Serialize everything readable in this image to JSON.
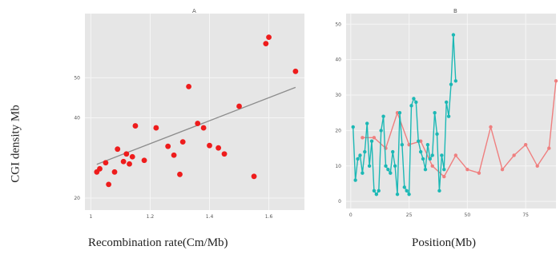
{
  "figure": {
    "y_axis_label": "CGI density Mb",
    "panel_a_xlabel": "Recombination rate(Cm/Mb)",
    "panel_b_xlabel": "Position(Mb)"
  },
  "chart_data": [
    {
      "type": "scatter",
      "title": "A",
      "xlabel": "Recombination rate(Cm/Mb)",
      "ylabel": "CGI density Mb",
      "xlim": [
        0.98,
        1.72
      ],
      "ylim": [
        17,
        66
      ],
      "xticks": [
        1.0,
        1.2,
        1.4,
        1.6
      ],
      "yticks": [
        20,
        40,
        50
      ],
      "yticklabels": [
        "20",
        "40",
        "50"
      ],
      "grid": true,
      "point_color": "#ee1c1c",
      "trend_color": "#8c8c8c",
      "points": [
        [
          1.02,
          26.5
        ],
        [
          1.03,
          27.3
        ],
        [
          1.05,
          28.8
        ],
        [
          1.06,
          23.4
        ],
        [
          1.08,
          26.5
        ],
        [
          1.09,
          32.2
        ],
        [
          1.11,
          29.1
        ],
        [
          1.12,
          31.0
        ],
        [
          1.13,
          28.5
        ],
        [
          1.14,
          30.3
        ],
        [
          1.15,
          38.0
        ],
        [
          1.18,
          29.4
        ],
        [
          1.22,
          37.5
        ],
        [
          1.26,
          32.9
        ],
        [
          1.28,
          30.7
        ],
        [
          1.3,
          25.9
        ],
        [
          1.31,
          34.0
        ],
        [
          1.33,
          47.8
        ],
        [
          1.36,
          38.6
        ],
        [
          1.38,
          37.5
        ],
        [
          1.4,
          33.1
        ],
        [
          1.43,
          32.5
        ],
        [
          1.45,
          31.0
        ],
        [
          1.5,
          42.9
        ],
        [
          1.55,
          25.4
        ],
        [
          1.59,
          58.5
        ],
        [
          1.6,
          60.1
        ],
        [
          1.69,
          51.6
        ]
      ],
      "trend": [
        [
          1.02,
          28.4
        ],
        [
          1.69,
          47.6
        ]
      ]
    },
    {
      "type": "line",
      "title": "B",
      "xlabel": "Position(Mb)",
      "xlim": [
        -2,
        88
      ],
      "ylim": [
        -2,
        53
      ],
      "xticks": [
        0,
        25,
        50,
        75
      ],
      "yticks": [
        0,
        10,
        20,
        30,
        40,
        50
      ],
      "grid": true,
      "series": [
        {
          "color": "#ef7f7f",
          "x": [
            5,
            10,
            15,
            20,
            25,
            30,
            35,
            40,
            45,
            50,
            55,
            60,
            65,
            70,
            75,
            80,
            85,
            88
          ],
          "y": [
            18,
            18,
            15,
            25,
            16,
            17,
            10,
            7,
            13,
            9,
            8,
            21,
            9,
            13,
            16,
            10,
            15,
            34
          ]
        },
        {
          "color": "#1cb8b5",
          "x": [
            1,
            2,
            3,
            4,
            5,
            6,
            7,
            8,
            9,
            10,
            11,
            12,
            13,
            14,
            15,
            16,
            17,
            18,
            19,
            20,
            21,
            22,
            23,
            24,
            25,
            26,
            27,
            28,
            29,
            30,
            31,
            32,
            33,
            34,
            35,
            36,
            37,
            38,
            39,
            40,
            41,
            42,
            43,
            44,
            45
          ],
          "y": [
            21,
            6,
            12,
            13,
            8,
            14,
            22,
            10,
            17,
            3,
            2,
            3,
            20,
            24,
            10,
            9,
            8,
            14,
            10,
            2,
            25,
            16,
            4,
            3,
            2,
            27,
            29,
            28,
            17,
            14,
            12,
            9,
            16,
            12,
            13,
            25,
            19,
            3,
            13,
            9,
            28,
            24,
            33,
            47,
            34
          ]
        }
      ]
    }
  ]
}
